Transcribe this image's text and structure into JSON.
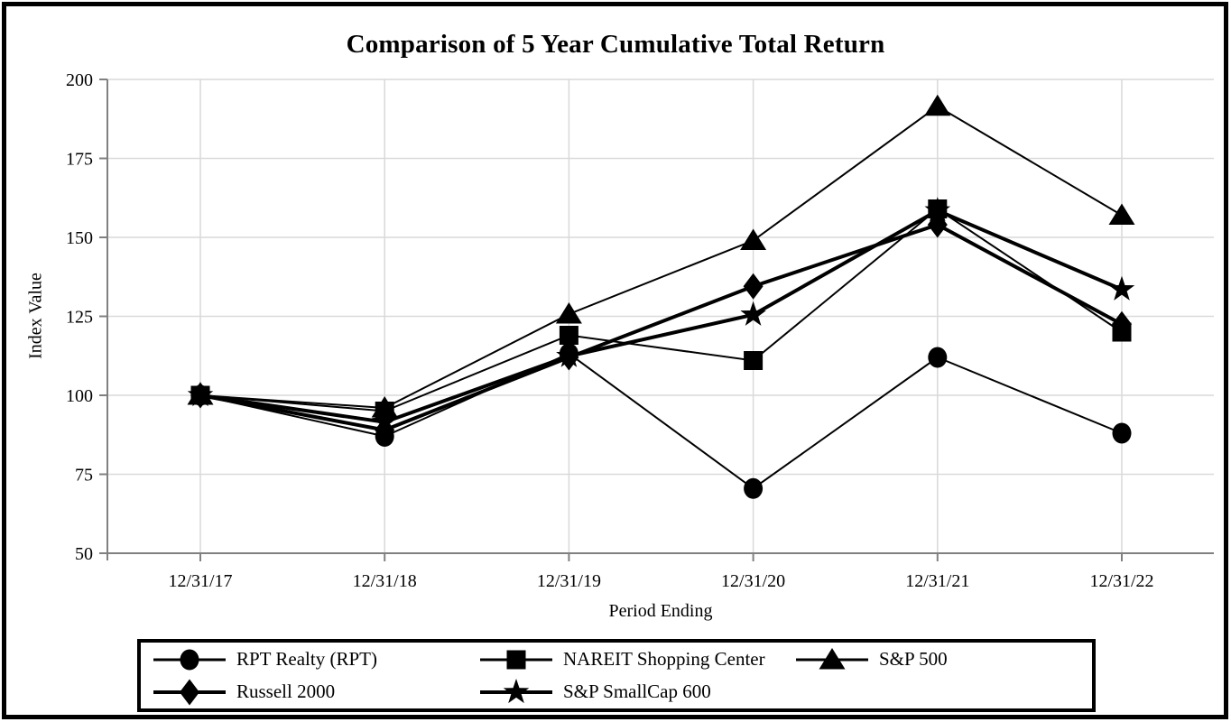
{
  "figure": {
    "title": "Comparison of 5 Year Cumulative Total Return"
  },
  "chart_data": {
    "type": "line",
    "title": "Comparison of 5 Year Cumulative Total Return",
    "xlabel": "Period Ending",
    "ylabel": "Index Value",
    "categories": [
      "12/31/17",
      "12/31/18",
      "12/31/19",
      "12/31/20",
      "12/31/21",
      "12/31/22"
    ],
    "y_ticks": [
      50,
      75,
      100,
      125,
      150,
      175,
      200
    ],
    "ylim": [
      50,
      200
    ],
    "grid": true,
    "legend_position": "bottom-box",
    "series": [
      {
        "name": "RPT Realty (RPT)",
        "marker": "circle",
        "line": "thin",
        "values": [
          100,
          87,
          113.2,
          70.5,
          112,
          88
        ]
      },
      {
        "name": "NAREIT Shopping Center",
        "marker": "square",
        "line": "thin",
        "values": [
          100,
          95,
          119,
          111,
          159,
          120
        ]
      },
      {
        "name": "S&P 500",
        "marker": "triangle",
        "line": "thin",
        "values": [
          100,
          96,
          125.7,
          149,
          191.5,
          157
        ]
      },
      {
        "name": "Russell 2000",
        "marker": "diamond",
        "line": "thick",
        "values": [
          100,
          89,
          112,
          134.5,
          154,
          122.5
        ]
      },
      {
        "name": "S&P SmallCap 600",
        "marker": "star",
        "line": "thick",
        "values": [
          100,
          91.5,
          112.4,
          125.5,
          158.5,
          133.5
        ]
      }
    ],
    "draw_order": [
      2,
      4,
      0,
      3,
      1
    ],
    "colors": {
      "series": "#000000",
      "gridline": "#d9d9d9",
      "axis": "#808080",
      "background": "#ffffff",
      "border": "#000000"
    }
  }
}
